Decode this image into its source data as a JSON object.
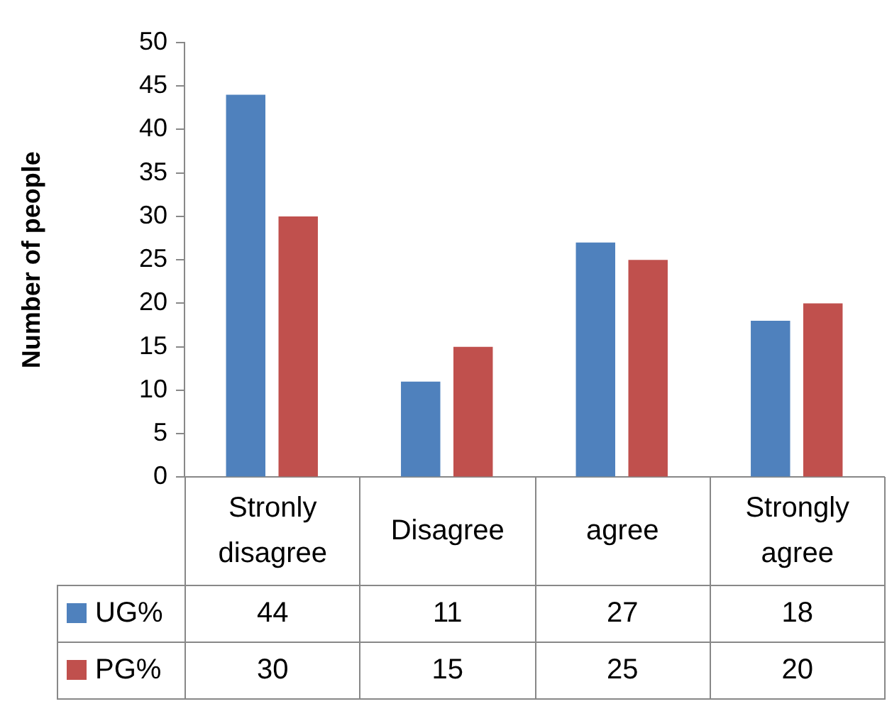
{
  "chart_data": {
    "type": "bar",
    "ylabel": "Number of people",
    "categories": [
      "Stronly disagree",
      "Disagree",
      "agree",
      "Strongly agree"
    ],
    "series": [
      {
        "name": "UG%",
        "color": "#4f81bd",
        "values": [
          44,
          11,
          27,
          18
        ]
      },
      {
        "name": "PG%",
        "color": "#c0504d",
        "values": [
          30,
          15,
          25,
          20
        ]
      }
    ],
    "ylim": [
      0,
      50
    ],
    "yticks": [
      0,
      5,
      10,
      15,
      20,
      25,
      30,
      35,
      40,
      45,
      50
    ],
    "grid": false,
    "legend": "bottom left",
    "data_labels": true
  }
}
